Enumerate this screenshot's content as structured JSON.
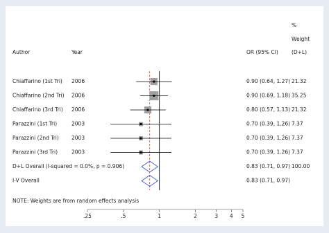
{
  "chart_data": {
    "type": "forest",
    "headers": {
      "weight_pct": "%",
      "weight": "Weight",
      "weight_method": "(D+L)",
      "author": "Author",
      "year": "Year",
      "or": "OR (95% CI)"
    },
    "studies": [
      {
        "author": "Chiaffarino (1st Tri)",
        "year": 2006,
        "or": 0.9,
        "ci": [
          0.64,
          1.27
        ],
        "ci_label": "0.90 (0.64, 1.27)",
        "weight": 21.32
      },
      {
        "author": "Chiaffarino (2nd Tri)",
        "year": 2006,
        "or": 0.9,
        "ci": [
          0.69,
          1.18
        ],
        "ci_label": "0.90 (0.69, 1.18)",
        "weight": 35.25
      },
      {
        "author": "Chiaffarino (3rd Tri)",
        "year": 2006,
        "or": 0.8,
        "ci": [
          0.57,
          1.13
        ],
        "ci_label": "0.80 (0.57, 1.13)",
        "weight": 21.32
      },
      {
        "author": "Parazzini (1st Tri)",
        "year": 2003,
        "or": 0.7,
        "ci": [
          0.39,
          1.26
        ],
        "ci_label": "0.70 (0.39, 1.26)",
        "weight": 7.37
      },
      {
        "author": "Parazzini (2nd Tri)",
        "year": 2003,
        "or": 0.7,
        "ci": [
          0.39,
          1.26
        ],
        "ci_label": "0.70 (0.39, 1.26)",
        "weight": 7.37
      },
      {
        "author": "Parazzini (3rd Tri)",
        "year": 2003,
        "or": 0.7,
        "ci": [
          0.39,
          1.26
        ],
        "ci_label": "0.70 (0.39, 1.26)",
        "weight": 7.37
      }
    ],
    "overall": [
      {
        "label": "D+L Overall (I-squared = 0.0%, p = 0.906)",
        "or": 0.83,
        "ci": [
          0.71,
          0.97
        ],
        "ci_label": "0.83 (0.71, 0.97)",
        "weight": {
          "value": 100,
          "label": "100.00"
        }
      },
      {
        "label": "I-V Overall",
        "or": 0.83,
        "ci": [
          0.71,
          0.97
        ],
        "ci_label": "0.83 (0.71, 0.97)"
      }
    ],
    "note": "NOTE: Weights are from random effects analysis",
    "xscale": "log",
    "xlim": [
      0.25,
      5
    ],
    "xticks": [
      {
        "value": 0.25,
        "label": ".25"
      },
      {
        "value": 0.5,
        "label": ".5"
      },
      1,
      2,
      3,
      4,
      5
    ],
    "reference_line": 1,
    "box_color": "#a0a0a0",
    "diamond_color": "#3a4fc0",
    "overall_line_color": "#d03030"
  }
}
